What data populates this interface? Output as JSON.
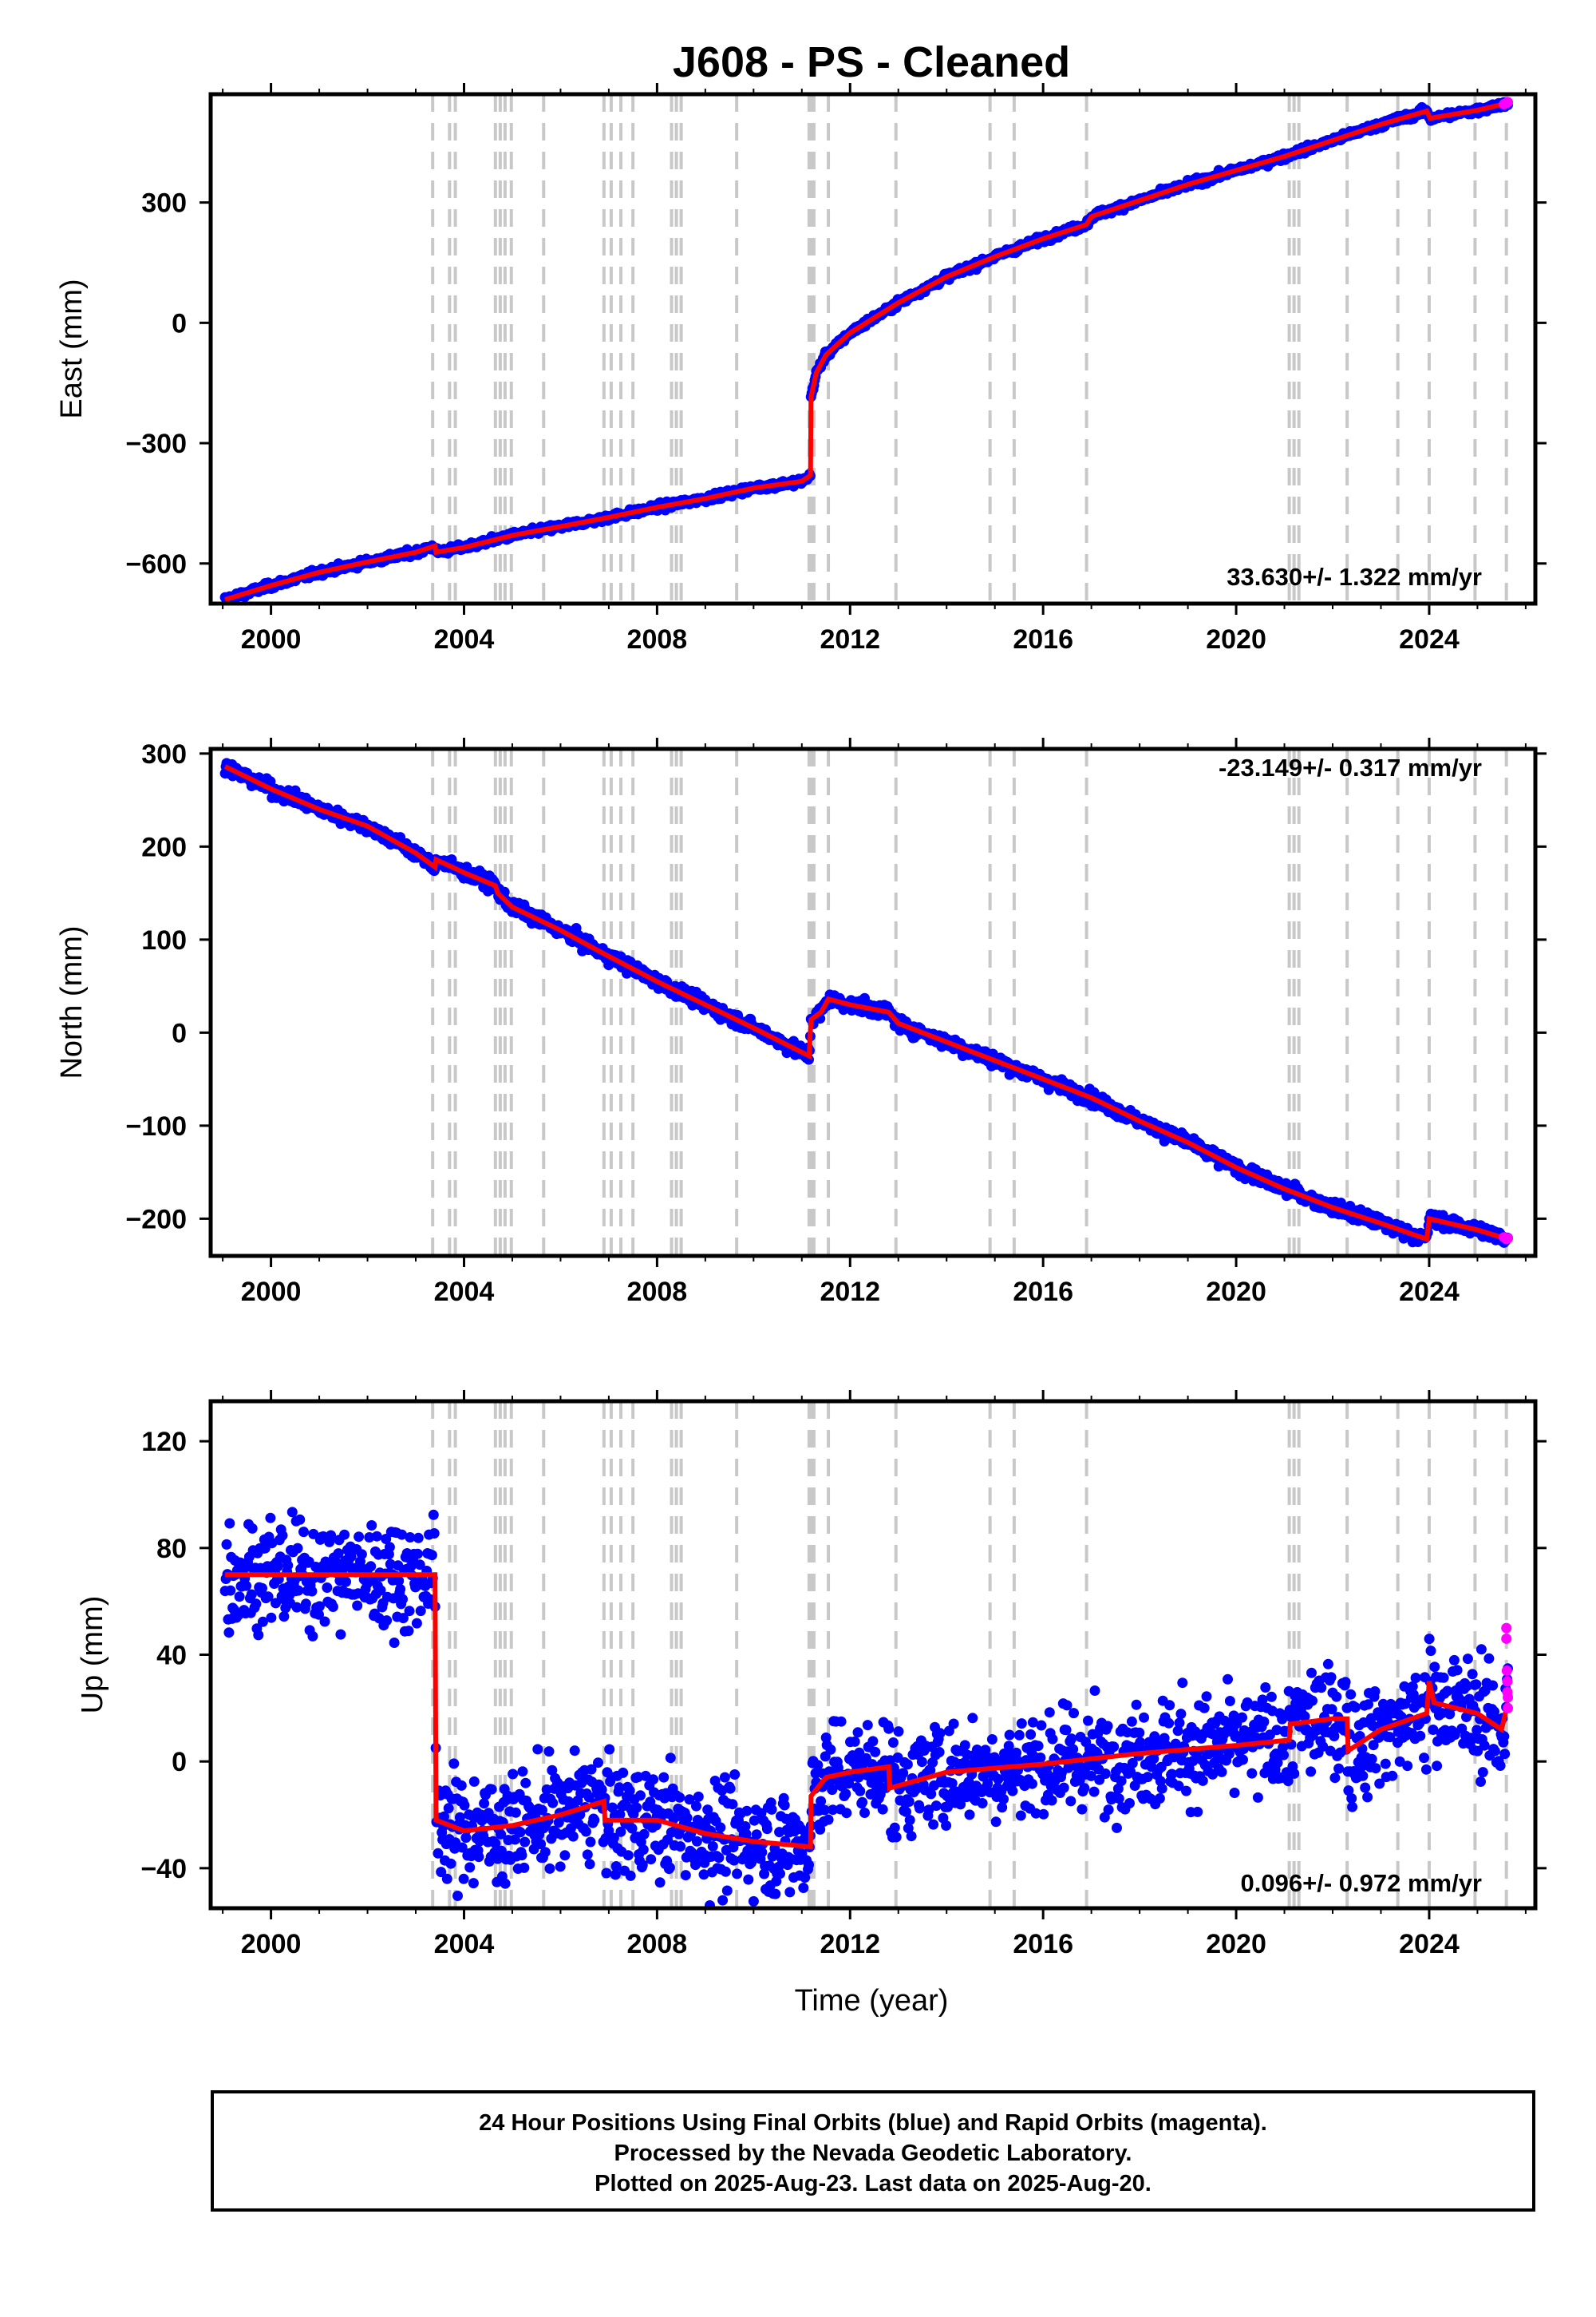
{
  "title": "J608  - PS - Cleaned",
  "xlabel": "Time (year)",
  "footer": [
    "24 Hour Positions Using Final Orbits (blue) and Rapid Orbits (magenta).",
    "Processed by the Nevada Geodetic Laboratory.",
    "Plotted on 2025-Aug-23. Last data on 2025-Aug-20."
  ],
  "colors": {
    "final_orbits": "#0000ff",
    "rapid_orbits": "#ff00ff",
    "model": "#ff0000",
    "steps": "#c8c8c8"
  },
  "chart_data": [
    {
      "type": "scatter",
      "component": "East",
      "ylabel": "East (mm)",
      "rate_label": "33.630+/- 1.322 mm/yr",
      "xlim": [
        1998.75,
        2026.2
      ],
      "ylim": [
        -700,
        570
      ],
      "xticks": [
        2000,
        2004,
        2008,
        2012,
        2016,
        2020,
        2024
      ],
      "yticks": [
        -600,
        -300,
        0,
        300
      ],
      "grid": false,
      "x_start": 1999.05,
      "x_end": 2025.63,
      "eq_time": 2011.19,
      "model": [
        [
          1999.05,
          -690
        ],
        [
          2000,
          -655
        ],
        [
          2001,
          -622
        ],
        [
          2002,
          -596
        ],
        [
          2003,
          -572
        ],
        [
          2003.4,
          -556
        ],
        [
          2003.42,
          -572
        ],
        [
          2004,
          -560
        ],
        [
          2005,
          -530
        ],
        [
          2006,
          -508
        ],
        [
          2007,
          -485
        ],
        [
          2008,
          -460
        ],
        [
          2009,
          -438
        ],
        [
          2010,
          -412
        ],
        [
          2011,
          -395
        ],
        [
          2011.18,
          -380
        ],
        [
          2011.19,
          -185
        ],
        [
          2011.3,
          -125
        ],
        [
          2011.5,
          -80
        ],
        [
          2012,
          -25
        ],
        [
          2013,
          50
        ],
        [
          2014,
          115
        ],
        [
          2015,
          165
        ],
        [
          2016,
          210
        ],
        [
          2016.9,
          245
        ],
        [
          2017,
          265
        ],
        [
          2018,
          305
        ],
        [
          2019,
          345
        ],
        [
          2020,
          380
        ],
        [
          2021,
          415
        ],
        [
          2022,
          455
        ],
        [
          2023,
          495
        ],
        [
          2023.95,
          528
        ],
        [
          2024.02,
          510
        ],
        [
          2025,
          530
        ],
        [
          2025.63,
          548
        ]
      ],
      "scatter": 6,
      "rapid_points": [
        [
          2025.55,
          545
        ],
        [
          2025.6,
          548
        ],
        [
          2025.63,
          550
        ]
      ]
    },
    {
      "type": "scatter",
      "component": "North",
      "ylabel": "North (mm)",
      "rate_label": "-23.149+/- 0.317 mm/yr",
      "xlim": [
        1998.75,
        2026.2
      ],
      "ylim": [
        -240,
        305
      ],
      "xticks": [
        2000,
        2004,
        2008,
        2012,
        2016,
        2020,
        2024
      ],
      "yticks": [
        -200,
        -100,
        0,
        100,
        200,
        300
      ],
      "grid": false,
      "x_start": 1999.05,
      "x_end": 2025.63,
      "model": [
        [
          1999.05,
          286
        ],
        [
          2000,
          262
        ],
        [
          2001,
          240
        ],
        [
          2002,
          222
        ],
        [
          2003,
          193
        ],
        [
          2003.4,
          178
        ],
        [
          2003.42,
          186
        ],
        [
          2004,
          172
        ],
        [
          2004.65,
          158
        ],
        [
          2004.7,
          150
        ],
        [
          2005,
          135
        ],
        [
          2006,
          110
        ],
        [
          2007,
          82
        ],
        [
          2008,
          55
        ],
        [
          2009,
          30
        ],
        [
          2010,
          5
        ],
        [
          2011.15,
          -25
        ],
        [
          2011.19,
          14
        ],
        [
          2011.4,
          22
        ],
        [
          2011.55,
          36
        ],
        [
          2012,
          30
        ],
        [
          2012.8,
          22
        ],
        [
          2013,
          10
        ],
        [
          2014,
          -10
        ],
        [
          2015,
          -30
        ],
        [
          2016,
          -50
        ],
        [
          2017,
          -70
        ],
        [
          2018,
          -95
        ],
        [
          2019,
          -118
        ],
        [
          2020,
          -145
        ],
        [
          2021,
          -168
        ],
        [
          2022,
          -188
        ],
        [
          2023,
          -205
        ],
        [
          2023.95,
          -222
        ],
        [
          2024.0,
          -200
        ],
        [
          2025,
          -212
        ],
        [
          2025.63,
          -222
        ]
      ],
      "scatter": 5,
      "rapid_points": [
        [
          2025.55,
          -220
        ],
        [
          2025.6,
          -222
        ],
        [
          2025.63,
          -221
        ]
      ]
    },
    {
      "type": "scatter",
      "component": "Up",
      "ylabel": "Up (mm)",
      "rate_label": "0.096+/- 0.972 mm/yr",
      "xlim": [
        1998.75,
        2026.2
      ],
      "ylim": [
        -55,
        135
      ],
      "xticks": [
        2000,
        2004,
        2008,
        2012,
        2016,
        2020,
        2024
      ],
      "yticks": [
        -40,
        0,
        40,
        80,
        120
      ],
      "grid": false,
      "x_start": 1999.05,
      "x_end": 2025.63,
      "eq_time": 2011.19,
      "model": [
        [
          1999.05,
          70
        ],
        [
          2003.4,
          70
        ],
        [
          2003.42,
          -22
        ],
        [
          2004,
          -26
        ],
        [
          2005,
          -24
        ],
        [
          2006,
          -20
        ],
        [
          2006.9,
          -15
        ],
        [
          2006.92,
          -22
        ],
        [
          2008,
          -22
        ],
        [
          2009,
          -27
        ],
        [
          2010,
          -30
        ],
        [
          2011.18,
          -32
        ],
        [
          2011.19,
          -13
        ],
        [
          2011.5,
          -6
        ],
        [
          2012,
          -4
        ],
        [
          2012.8,
          -2
        ],
        [
          2012.82,
          -10
        ],
        [
          2014,
          -4
        ],
        [
          2016,
          -1
        ],
        [
          2018,
          3
        ],
        [
          2020,
          6
        ],
        [
          2021.1,
          8
        ],
        [
          2021.12,
          14
        ],
        [
          2022,
          16
        ],
        [
          2022.3,
          16
        ],
        [
          2022.32,
          4
        ],
        [
          2023,
          12
        ],
        [
          2023.95,
          18
        ],
        [
          2024.0,
          30
        ],
        [
          2024.1,
          22
        ],
        [
          2025,
          18
        ],
        [
          2025.5,
          12
        ],
        [
          2025.63,
          22
        ]
      ],
      "scatter": 14,
      "rapid_points": [
        [
          2025.6,
          50
        ],
        [
          2025.6,
          46
        ],
        [
          2025.61,
          34
        ],
        [
          2025.62,
          30
        ],
        [
          2025.62,
          26
        ],
        [
          2025.63,
          24
        ],
        [
          2025.63,
          20
        ]
      ]
    }
  ],
  "step_times": [
    2003.35,
    2003.7,
    2003.82,
    2004.65,
    2004.75,
    2004.85,
    2004.98,
    2005.65,
    2006.9,
    2007.05,
    2007.25,
    2007.5,
    2008.3,
    2008.4,
    2008.5,
    2009.65,
    2011.15,
    2011.19,
    2011.25,
    2011.55,
    2012.95,
    2014.9,
    2015.4,
    2016.9,
    2021.1,
    2021.2,
    2021.3,
    2022.3,
    2023.35,
    2024.0,
    2024.95,
    2025.6
  ]
}
